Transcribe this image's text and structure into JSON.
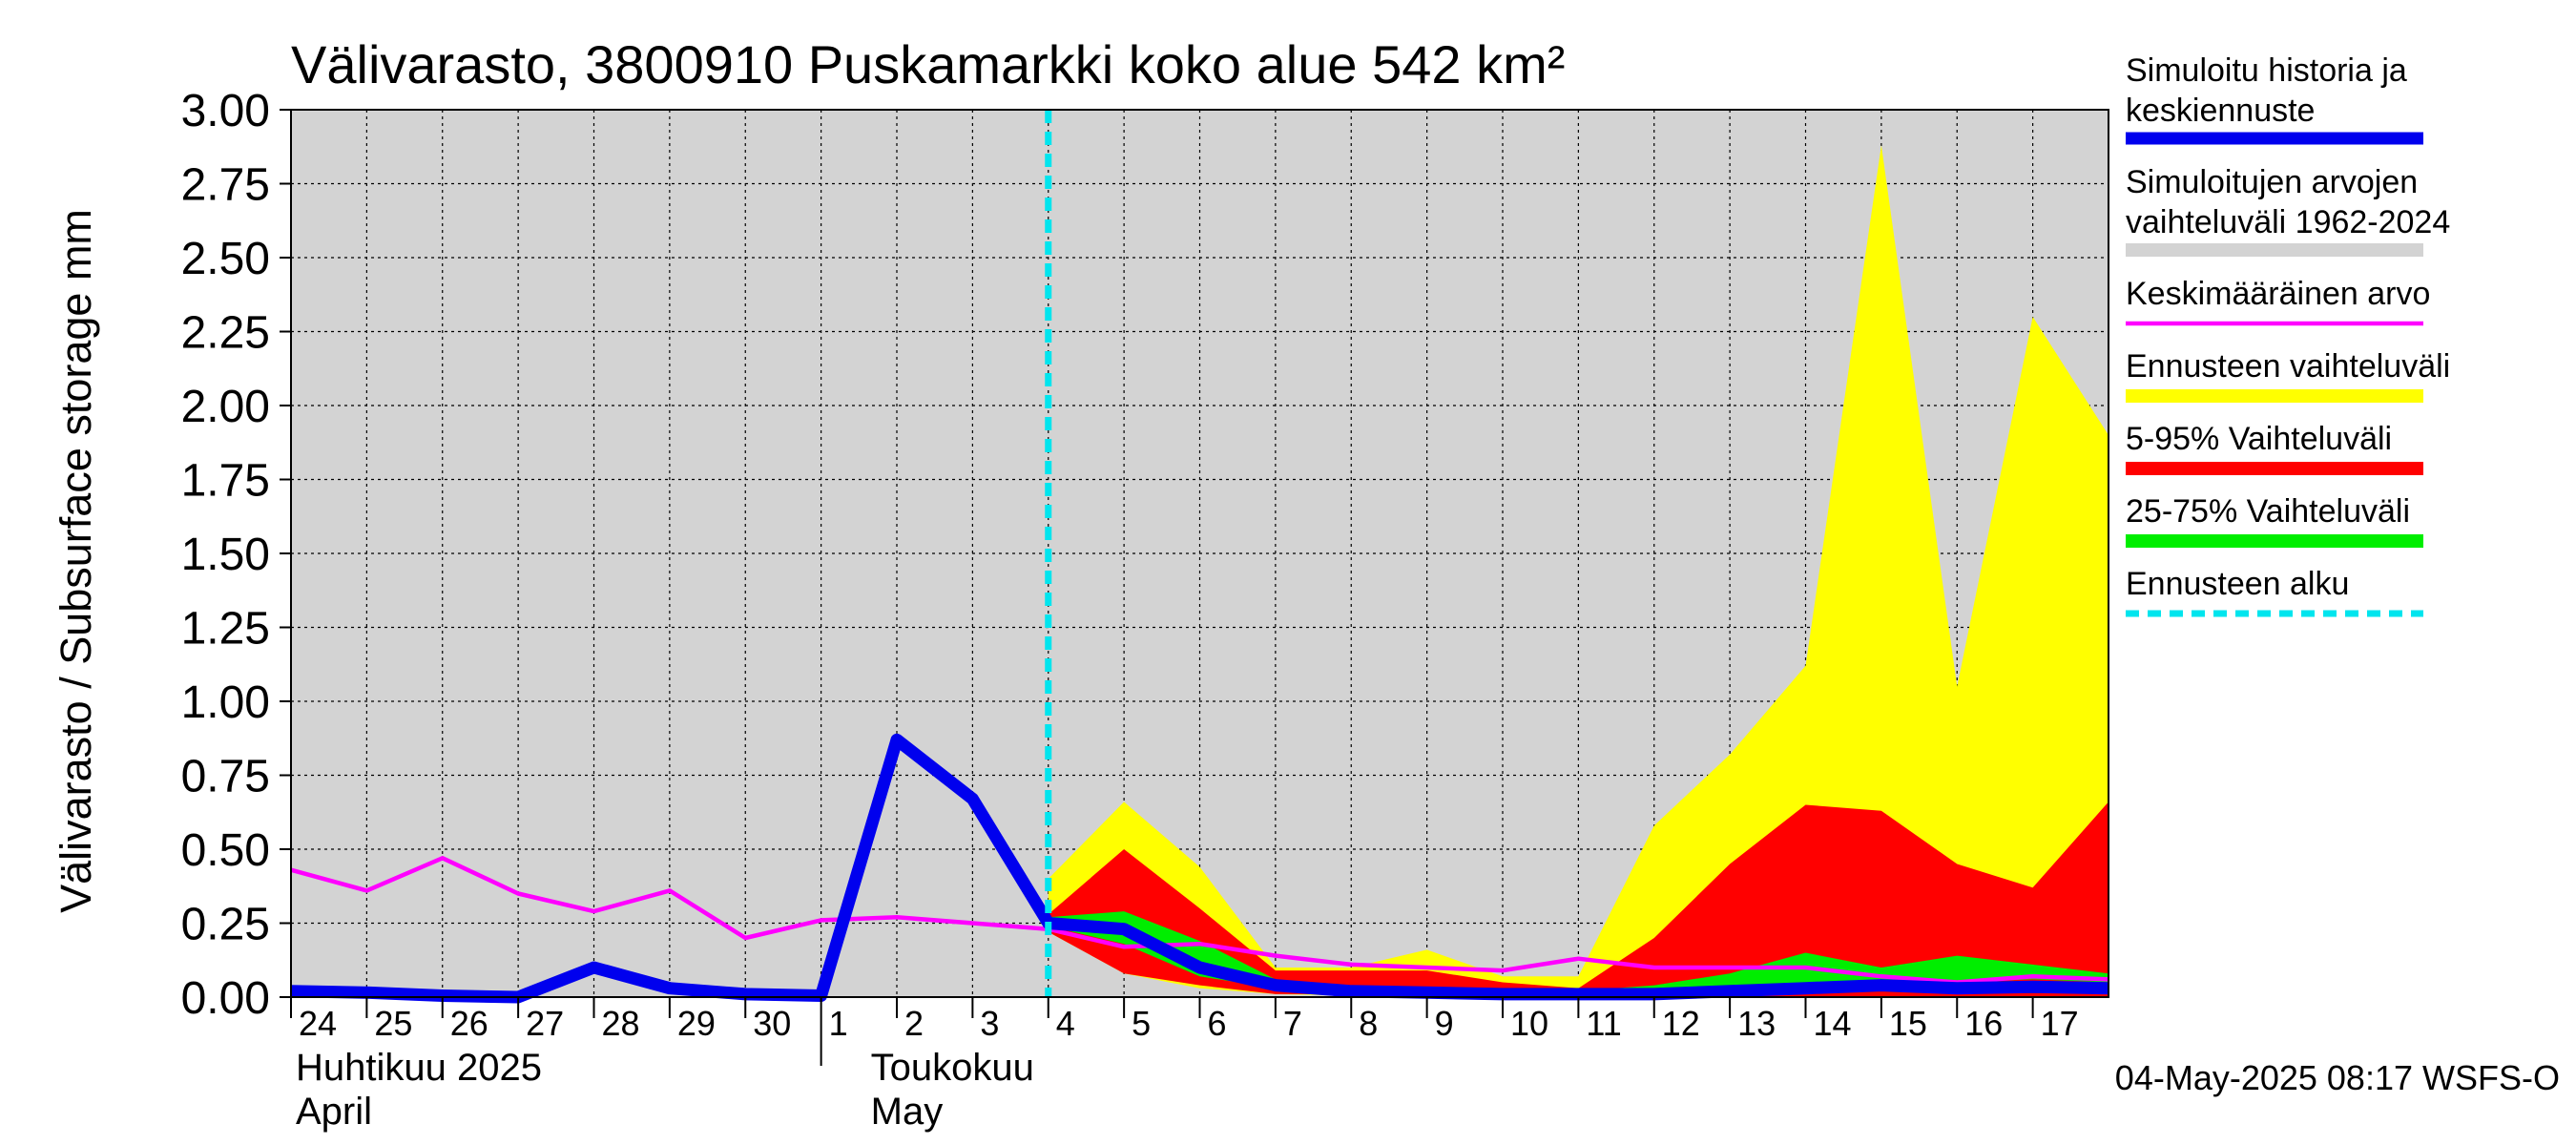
{
  "chart_data": {
    "type": "area",
    "title": "Välivarasto, 3800910 Puskamarkki koko alue 542 km²",
    "ylabel": "Välivarasto / Subsurface storage  mm",
    "ylim": [
      0,
      3.0
    ],
    "yticks": [
      "0.00",
      "0.25",
      "0.50",
      "0.75",
      "1.00",
      "1.25",
      "1.50",
      "1.75",
      "2.00",
      "2.25",
      "2.50",
      "2.75",
      "3.00"
    ],
    "grid": true,
    "x_day_labels": [
      "24",
      "25",
      "26",
      "27",
      "28",
      "29",
      "30",
      "1",
      "2",
      "3",
      "4",
      "5",
      "6",
      "7",
      "8",
      "9",
      "10",
      "11",
      "12",
      "13",
      "14",
      "15",
      "16",
      "17"
    ],
    "month_labels": [
      {
        "line1": "Huhtikuu  2025",
        "line2": "April"
      },
      {
        "line1": "Toukokuu",
        "line2": "May"
      }
    ],
    "x_dates": [
      "2025-04-24",
      "2025-04-25",
      "2025-04-26",
      "2025-04-27",
      "2025-04-28",
      "2025-04-29",
      "2025-04-30",
      "2025-05-01",
      "2025-05-02",
      "2025-05-03",
      "2025-05-04",
      "2025-05-05",
      "2025-05-06",
      "2025-05-07",
      "2025-05-08",
      "2025-05-09",
      "2025-05-10",
      "2025-05-11",
      "2025-05-12",
      "2025-05-13",
      "2025-05-14",
      "2025-05-15",
      "2025-05-16",
      "2025-05-17",
      "2025-05-18"
    ],
    "forecast_start": "2025-05-04",
    "series": [
      {
        "name": "Simuloitu historia ja keskiennuste",
        "color": "#0000ee",
        "values": [
          0.02,
          0.015,
          0.005,
          0.0,
          0.1,
          0.03,
          0.01,
          0.005,
          0.87,
          0.67,
          0.25,
          0.23,
          0.1,
          0.04,
          0.02,
          0.015,
          0.01,
          0.01,
          0.01,
          0.02,
          0.03,
          0.04,
          0.03,
          0.035,
          0.03
        ]
      },
      {
        "name": "Simuloitujen arvojen vaihteluväli 1962-2024",
        "color": "#d3d3d3",
        "low": [
          0,
          0,
          0,
          0,
          0,
          0,
          0,
          0,
          0,
          0,
          0,
          0,
          0,
          0,
          0,
          0,
          0,
          0,
          0,
          0,
          0,
          0,
          0,
          0,
          0
        ],
        "high": [
          3.0,
          3.0,
          3.0,
          3.0,
          3.0,
          3.0,
          3.0,
          3.0,
          3.0,
          3.0,
          3.0,
          3.0,
          3.0,
          3.0,
          3.0,
          3.0,
          3.0,
          3.0,
          3.0,
          3.0,
          3.0,
          3.0,
          3.0,
          3.0,
          3.0
        ]
      },
      {
        "name": "Keskimääräinen arvo",
        "color": "#ff00ff",
        "values": [
          0.43,
          0.36,
          0.47,
          0.35,
          0.29,
          0.36,
          0.2,
          0.26,
          0.27,
          0.25,
          0.23,
          0.17,
          0.18,
          0.14,
          0.11,
          0.1,
          0.09,
          0.13,
          0.1,
          0.1,
          0.1,
          0.07,
          0.05,
          0.07,
          0.06
        ]
      },
      {
        "name": "Ennusteen vaihteluväli",
        "color": "#ffff00",
        "low": [
          null,
          null,
          null,
          null,
          null,
          null,
          null,
          null,
          null,
          null,
          0.22,
          0.08,
          0.03,
          0.01,
          0.005,
          0.005,
          0.0,
          0.0,
          0.0,
          0.0,
          0.0,
          0.0,
          0.0,
          0.0,
          0.0
        ],
        "high": [
          null,
          null,
          null,
          null,
          null,
          null,
          null,
          null,
          null,
          null,
          0.4,
          0.66,
          0.44,
          0.1,
          0.1,
          0.16,
          0.07,
          0.07,
          0.58,
          0.82,
          1.12,
          2.88,
          1.05,
          2.3,
          1.9
        ]
      },
      {
        "name": "5-95% Vaihteluväli",
        "color": "#ff0000",
        "low": [
          null,
          null,
          null,
          null,
          null,
          null,
          null,
          null,
          null,
          null,
          0.22,
          0.08,
          0.04,
          0.01,
          0.01,
          0.01,
          0.0,
          0.0,
          0.0,
          0.0,
          0.0,
          0.0,
          0.0,
          0.0,
          0.0
        ],
        "high": [
          null,
          null,
          null,
          null,
          null,
          null,
          null,
          null,
          null,
          null,
          0.28,
          0.5,
          0.3,
          0.09,
          0.09,
          0.09,
          0.05,
          0.03,
          0.2,
          0.45,
          0.65,
          0.63,
          0.45,
          0.37,
          0.66
        ]
      },
      {
        "name": "25-75% Vaihteluväli",
        "color": "#00ee00",
        "low": [
          null,
          null,
          null,
          null,
          null,
          null,
          null,
          null,
          null,
          null,
          0.24,
          0.18,
          0.07,
          0.03,
          0.01,
          0.01,
          0.01,
          0.0,
          0.0,
          0.02,
          0.04,
          0.05,
          0.05,
          0.06,
          0.05
        ],
        "high": [
          null,
          null,
          null,
          null,
          null,
          null,
          null,
          null,
          null,
          null,
          0.27,
          0.29,
          0.19,
          0.06,
          0.03,
          0.03,
          0.02,
          0.02,
          0.04,
          0.08,
          0.15,
          0.1,
          0.14,
          0.11,
          0.08
        ]
      },
      {
        "name": "Ennusteen alku",
        "color": "#00e5ee"
      }
    ],
    "legend": [
      {
        "line1": "Simuloitu historia ja",
        "line2": "keskiennuste",
        "color": "#0000ee",
        "style": "thick"
      },
      {
        "line1": "Simuloitujen arvojen",
        "line2": "vaihteluväli 1962-2024",
        "color": "#d3d3d3",
        "style": "band"
      },
      {
        "line1": "Keskimääräinen arvo",
        "line2": "",
        "color": "#ff00ff",
        "style": "thin"
      },
      {
        "line1": "Ennusteen vaihteluväli",
        "line2": "",
        "color": "#ffff00",
        "style": "band"
      },
      {
        "line1": "5-95% Vaihteluväli",
        "line2": "",
        "color": "#ff0000",
        "style": "band"
      },
      {
        "line1": "25-75% Vaihteluväli",
        "line2": "",
        "color": "#00ee00",
        "style": "band"
      },
      {
        "line1": "Ennusteen alku",
        "line2": "",
        "color": "#00e5ee",
        "style": "dashed"
      }
    ],
    "legend_position": "right",
    "footer": "04-May-2025 08:17 WSFS-O"
  }
}
